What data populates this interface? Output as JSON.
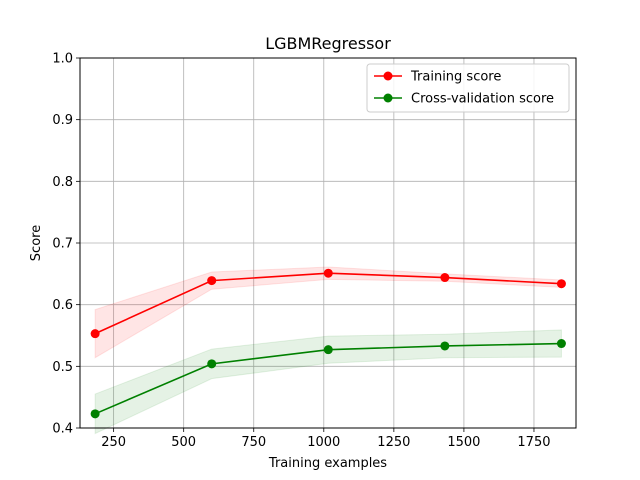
{
  "chart_data": {
    "type": "line",
    "title": "LGBMRegressor",
    "xlabel": "Training examples",
    "ylabel": "Score",
    "xlim": [
      130,
      1900
    ],
    "ylim": [
      0.4,
      1.0
    ],
    "xticks": [
      250,
      500,
      750,
      1000,
      1250,
      1500,
      1750
    ],
    "yticks": [
      0.4,
      0.5,
      0.6,
      0.7,
      0.8,
      0.9,
      1.0
    ],
    "xtick_labels": [
      "250",
      "500",
      "750",
      "1000",
      "1250",
      "1500",
      "1750"
    ],
    "ytick_labels": [
      "0.4",
      "0.5",
      "0.6",
      "0.7",
      "0.8",
      "0.9",
      "1.0"
    ],
    "grid": true,
    "legend_position": "top-right",
    "x": [
      184,
      600,
      1016,
      1432,
      1848
    ],
    "series": [
      {
        "name": "Training score",
        "color": "#ff0000",
        "band_color": "#ff0000",
        "values": [
          0.553,
          0.639,
          0.651,
          0.644,
          0.634
        ],
        "lower": [
          0.514,
          0.625,
          0.641,
          0.638,
          0.628
        ],
        "upper": [
          0.592,
          0.653,
          0.661,
          0.65,
          0.64
        ]
      },
      {
        "name": "Cross-validation score",
        "color": "#008000",
        "band_color": "#008000",
        "values": [
          0.423,
          0.504,
          0.527,
          0.533,
          0.537
        ],
        "lower": [
          0.391,
          0.48,
          0.505,
          0.514,
          0.515
        ],
        "upper": [
          0.455,
          0.528,
          0.549,
          0.552,
          0.559
        ]
      }
    ]
  }
}
